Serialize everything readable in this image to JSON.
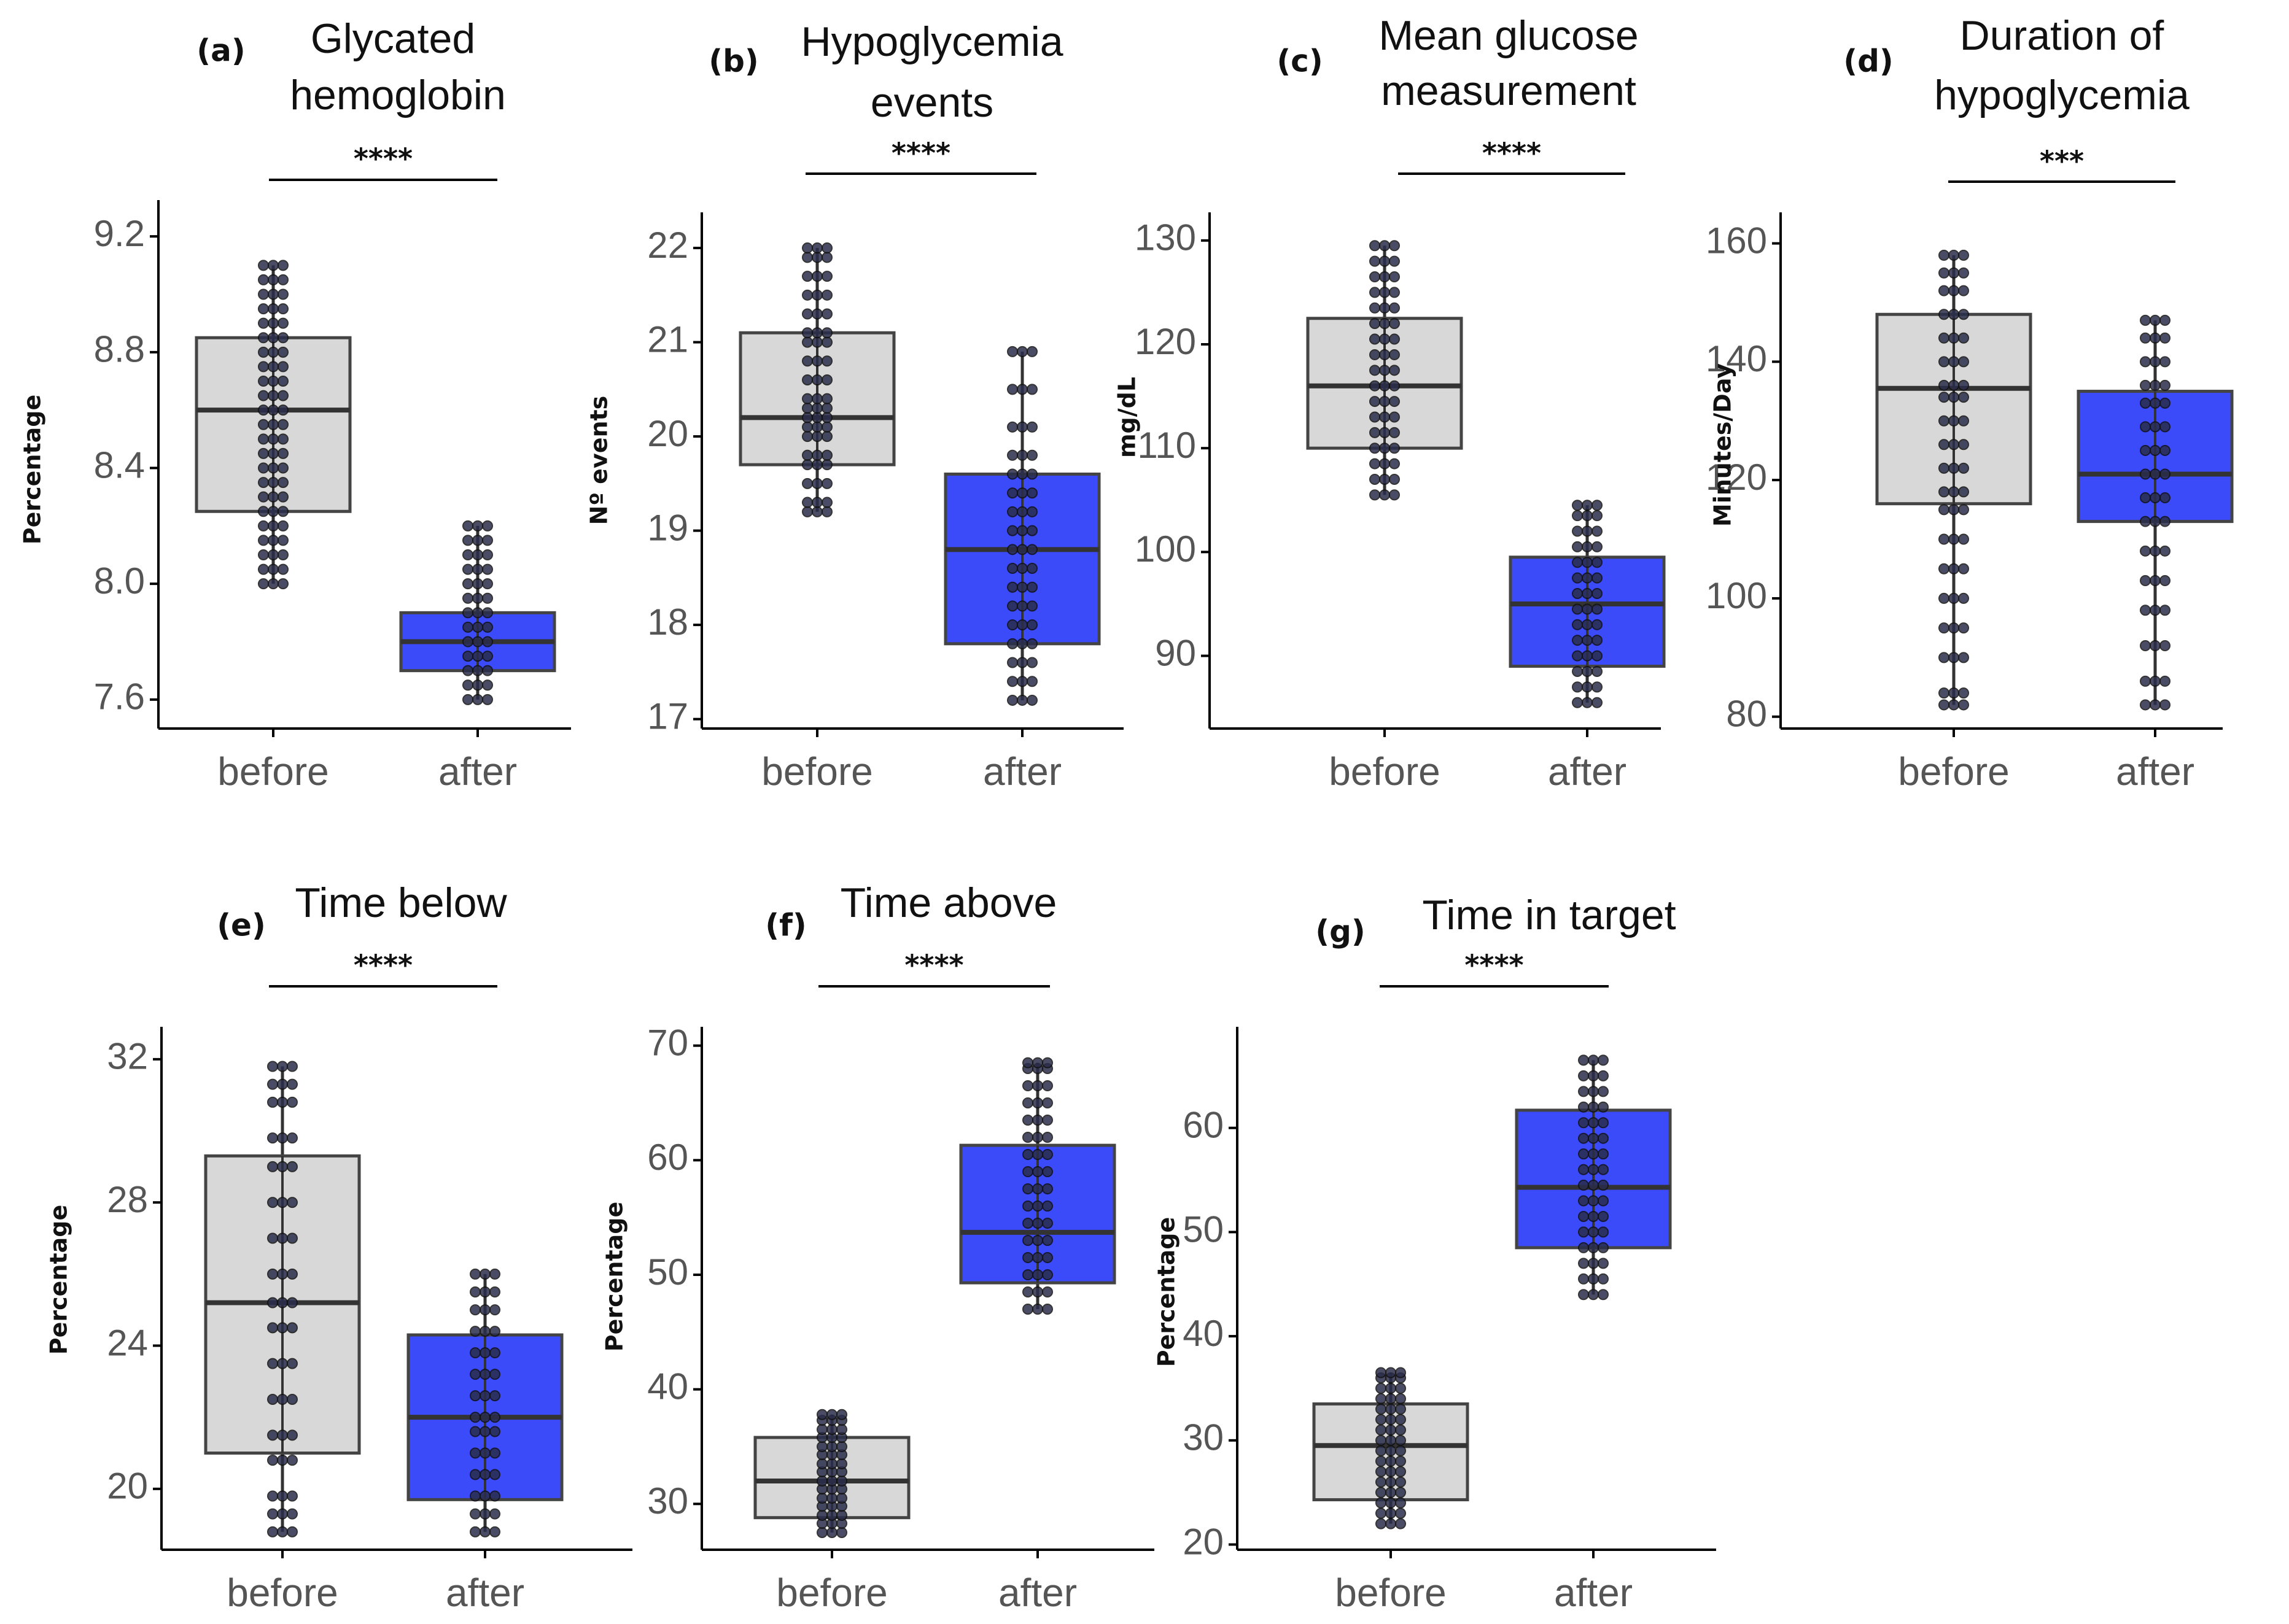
{
  "colors": {
    "before": "#d8d8d8",
    "after": "#3c4bfa",
    "point": "#2a2d4a",
    "line": "#333333"
  },
  "chart_data": [
    {
      "id": "a",
      "panel": "(a)",
      "title_lines": [
        "Glycated",
        "hemoglobin"
      ],
      "type": "box",
      "ylabel": "Percentage",
      "ylim": [
        7.5,
        9.3
      ],
      "yticks": [
        "7.6",
        "8.0",
        "8.4",
        "8.8",
        "9.2"
      ],
      "categories": [
        "before",
        "after"
      ],
      "significance": "****",
      "boxes": [
        {
          "name": "before",
          "min": 8.0,
          "q1": 8.25,
          "median": 8.6,
          "q3": 8.85,
          "max": 9.1,
          "points": [
            8.0,
            8.05,
            8.1,
            8.15,
            8.2,
            8.25,
            8.3,
            8.35,
            8.4,
            8.45,
            8.5,
            8.55,
            8.6,
            8.65,
            8.7,
            8.75,
            8.8,
            8.85,
            8.9,
            8.95,
            9.0,
            9.05,
            9.1
          ]
        },
        {
          "name": "after",
          "min": 7.6,
          "q1": 7.7,
          "median": 7.8,
          "q3": 7.9,
          "max": 8.2,
          "points": [
            7.6,
            7.65,
            7.7,
            7.75,
            7.8,
            7.85,
            7.9,
            7.95,
            8.0,
            8.05,
            8.1,
            8.15,
            8.2
          ]
        }
      ]
    },
    {
      "id": "b",
      "panel": "(b)",
      "title_lines": [
        "Hypoglycemia",
        "events"
      ],
      "type": "box",
      "ylabel": "Nº events",
      "ylim": [
        16.9,
        22.3
      ],
      "yticks": [
        "17",
        "18",
        "19",
        "20",
        "21",
        "22"
      ],
      "categories": [
        "before",
        "after"
      ],
      "significance": "****",
      "boxes": [
        {
          "name": "before",
          "min": 19.2,
          "q1": 19.7,
          "median": 20.2,
          "q3": 21.1,
          "max": 22.0,
          "points": [
            19.2,
            19.3,
            19.5,
            19.7,
            19.8,
            20.0,
            20.1,
            20.2,
            20.3,
            20.4,
            20.6,
            20.8,
            21.0,
            21.1,
            21.3,
            21.5,
            21.7,
            21.9,
            22.0
          ]
        },
        {
          "name": "after",
          "min": 17.2,
          "q1": 17.8,
          "median": 18.8,
          "q3": 19.6,
          "max": 20.9,
          "points": [
            17.2,
            17.4,
            17.6,
            17.8,
            18.0,
            18.2,
            18.4,
            18.6,
            18.8,
            19.0,
            19.2,
            19.4,
            19.6,
            19.8,
            20.1,
            20.5,
            20.9
          ]
        }
      ]
    },
    {
      "id": "c",
      "panel": "(c)",
      "title_lines": [
        "Mean glucose",
        "measurement"
      ],
      "type": "box",
      "ylabel": "mg/dL",
      "ylim": [
        83,
        132
      ],
      "yticks": [
        "90",
        "100",
        "110",
        "120",
        "130"
      ],
      "categories": [
        "before",
        "after"
      ],
      "significance": "****",
      "boxes": [
        {
          "name": "before",
          "min": 105.5,
          "q1": 110,
          "median": 116,
          "q3": 122.5,
          "max": 129.5,
          "points": [
            105.5,
            107,
            108.5,
            110,
            111.5,
            113,
            114.5,
            116,
            117.5,
            119,
            120.5,
            122,
            123.5,
            125,
            126.5,
            128,
            129.5
          ]
        },
        {
          "name": "after",
          "min": 85.5,
          "q1": 89,
          "median": 95,
          "q3": 99.5,
          "max": 104.5,
          "points": [
            85.5,
            87,
            88.5,
            90,
            91.5,
            93,
            94.5,
            96,
            97.5,
            99,
            100.5,
            102,
            103.5,
            104.5
          ]
        }
      ]
    },
    {
      "id": "d",
      "panel": "(d)",
      "title_lines": [
        "Duration of",
        "hypoglycemia"
      ],
      "type": "box",
      "ylabel": "Minutes/Day",
      "ylim": [
        78,
        164
      ],
      "yticks": [
        "80",
        "100",
        "120",
        "140",
        "160"
      ],
      "categories": [
        "before",
        "after"
      ],
      "significance": "***",
      "boxes": [
        {
          "name": "before",
          "min": 82,
          "q1": 116,
          "median": 135.5,
          "q3": 148,
          "max": 158,
          "points": [
            82,
            84,
            90,
            95,
            100,
            105,
            110,
            115,
            118,
            122,
            126,
            130,
            134,
            136,
            140,
            144,
            148,
            152,
            155,
            158
          ]
        },
        {
          "name": "after",
          "min": 82,
          "q1": 113,
          "median": 121,
          "q3": 135,
          "max": 147,
          "points": [
            82,
            86,
            92,
            98,
            103,
            108,
            113,
            117,
            121,
            125,
            129,
            133,
            136,
            140,
            144,
            147
          ]
        }
      ]
    },
    {
      "id": "e",
      "panel": "(e)",
      "title_lines": [
        "Time below"
      ],
      "type": "box",
      "ylabel": "Percentage",
      "ylim": [
        18.3,
        32.7
      ],
      "yticks": [
        "20",
        "24",
        "28",
        "32"
      ],
      "categories": [
        "before",
        "after"
      ],
      "significance": "****",
      "boxes": [
        {
          "name": "before",
          "min": 18.8,
          "q1": 21,
          "median": 25.2,
          "q3": 29.3,
          "max": 31.8,
          "points": [
            18.8,
            19.3,
            19.8,
            20.8,
            21.5,
            22.5,
            23.5,
            24.5,
            25.2,
            26,
            27,
            28,
            29,
            29.8,
            30.8,
            31.3,
            31.8
          ]
        },
        {
          "name": "after",
          "min": 18.8,
          "q1": 19.7,
          "median": 22.0,
          "q3": 24.3,
          "max": 26.0,
          "points": [
            18.8,
            19.3,
            19.8,
            20.4,
            21.0,
            21.6,
            22.0,
            22.6,
            23.2,
            23.8,
            24.4,
            25.0,
            25.5,
            26.0
          ]
        }
      ]
    },
    {
      "id": "f",
      "panel": "(f)",
      "title_lines": [
        "Time above"
      ],
      "type": "box",
      "ylabel": "Percentage",
      "ylim": [
        26,
        71
      ],
      "yticks": [
        "30",
        "40",
        "50",
        "60",
        "70"
      ],
      "categories": [
        "before",
        "after"
      ],
      "significance": "****",
      "boxes": [
        {
          "name": "before",
          "min": 27.5,
          "q1": 28.8,
          "median": 32,
          "q3": 35.8,
          "max": 37.8,
          "points": [
            27.5,
            28.3,
            29.0,
            29.8,
            30.5,
            31.3,
            32.0,
            32.8,
            33.5,
            34.3,
            35.0,
            35.8,
            36.5,
            37.3,
            37.8
          ]
        },
        {
          "name": "after",
          "min": 47,
          "q1": 49.3,
          "median": 53.7,
          "q3": 61.3,
          "max": 68.5,
          "points": [
            47,
            48.5,
            50,
            51.5,
            53,
            54.5,
            56,
            57.5,
            59,
            60.5,
            62,
            63.5,
            65,
            66.5,
            68,
            68.5
          ]
        }
      ]
    },
    {
      "id": "g",
      "panel": "(g)",
      "title_lines": [
        "Time in target"
      ],
      "type": "box",
      "ylabel": "Percentage",
      "ylim": [
        19.5,
        69
      ],
      "yticks": [
        "20",
        "30",
        "40",
        "50",
        "60"
      ],
      "categories": [
        "before",
        "after"
      ],
      "significance": "****",
      "boxes": [
        {
          "name": "before",
          "min": 22,
          "q1": 24.3,
          "median": 29.5,
          "q3": 33.5,
          "max": 36.5,
          "points": [
            22,
            23,
            24,
            25,
            26,
            27,
            28,
            29,
            30,
            31,
            32,
            33,
            34,
            35,
            36,
            36.5
          ]
        },
        {
          "name": "after",
          "min": 44,
          "q1": 48.5,
          "median": 54.3,
          "q3": 61.7,
          "max": 66.5,
          "points": [
            44,
            45.5,
            47,
            48.5,
            50,
            51.5,
            53,
            54.5,
            56,
            57.5,
            59,
            60.5,
            62,
            63.5,
            65,
            66.5
          ]
        }
      ]
    }
  ]
}
